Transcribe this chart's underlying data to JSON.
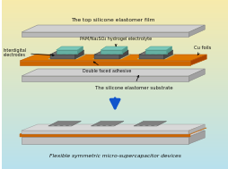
{
  "bg_top_color_r": [
    0.97,
    0.92,
    0.67
  ],
  "bg_bottom_color_r": [
    0.72,
    0.88,
    0.93
  ],
  "title_top": "The top silicone elastomer film",
  "label_electrolyte": "PAM/Na₂SO₄ hydrogel electrolyte",
  "label_electrodes": "Interdigital\nelectrodes",
  "label_cu": "Cu foils",
  "label_adhesive": "Double faced adhesive",
  "label_substrate": "The silicone elastomer substrate",
  "label_bottom": "Flexible symmetric micro-supercapacitor devices",
  "film_color": "#b8b8b8",
  "film_top_color": "#d2d2d2",
  "substrate_color": "#b8b8b8",
  "substrate_top_color": "#d0d0d0",
  "cu_color": "#cc6600",
  "hydrogel_color": "#7bc8ba",
  "electrode_dark": "#555555",
  "electrode_light": "#888888",
  "adhesive_color": "#c8b870",
  "arrow_color": "#1155cc",
  "text_color": "#111111"
}
